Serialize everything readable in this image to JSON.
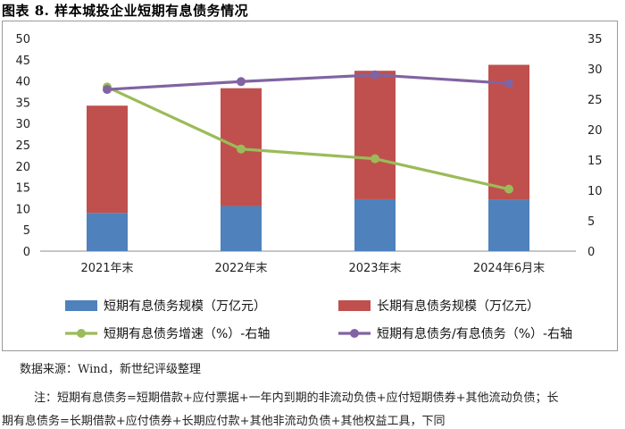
{
  "figure_title": "图表 8.  样本城投企业短期有息债务情况",
  "source": "数据来源：Wind，新世纪评级整理",
  "note_line1": "注：短期有息债务=短期借款+应付票据+一年内到期的非流动负债+应付短期债券+其他流动负债；长",
  "note_line2": "期有息债务=长期借款+应付债券+长期应付款+其他非流动负债+其他权益工具，下同",
  "colors": {
    "short_debt": "#4f81bd",
    "long_debt": "#c0504d",
    "growth_line": "#9bbb59",
    "ratio_line": "#8064a2"
  },
  "chart_data": {
    "type": "bar",
    "stacked": true,
    "categories": [
      "2021年末",
      "2022年末",
      "2023年末",
      "2024年6月末"
    ],
    "y_left": {
      "min": 0,
      "max": 50,
      "step": 5,
      "ticks": [
        "0",
        "5",
        "10",
        "15",
        "20",
        "25",
        "30",
        "35",
        "40",
        "45",
        "50"
      ]
    },
    "y_right": {
      "min": 0,
      "max": 35,
      "step": 5,
      "ticks": [
        "0",
        "5",
        "10",
        "15",
        "20",
        "25",
        "30",
        "35"
      ]
    },
    "bar_series": [
      {
        "name": "短期有息债务规模（万亿元）",
        "values": [
          9.0,
          10.6,
          12.2,
          12.1
        ],
        "color_key": "short_debt"
      },
      {
        "name": "长期有息债务规模（万亿元）",
        "values": [
          25.2,
          27.7,
          30.2,
          31.7
        ],
        "color_key": "long_debt"
      }
    ],
    "line_series": [
      {
        "name": "短期有息债务增速（%）-右轴",
        "values": [
          27.0,
          16.8,
          15.2,
          10.2
        ],
        "axis": "right",
        "color_key": "growth_line"
      },
      {
        "name": "短期有息债务/有息债务（%）-右轴",
        "values": [
          26.6,
          27.9,
          29.0,
          27.6
        ],
        "axis": "right",
        "color_key": "ratio_line"
      }
    ],
    "legend": {
      "position": "bottom",
      "items": [
        {
          "label": "短期有息债务规模（万亿元）",
          "kind": "bar",
          "color_key": "short_debt"
        },
        {
          "label": "长期有息债务规模（万亿元）",
          "kind": "bar",
          "color_key": "long_debt"
        },
        {
          "label": "短期有息债务增速（%）-右轴",
          "kind": "line",
          "color_key": "growth_line"
        },
        {
          "label": "短期有息债务/有息债务（%）-右轴",
          "kind": "line",
          "color_key": "ratio_line"
        }
      ]
    },
    "grid": false
  }
}
